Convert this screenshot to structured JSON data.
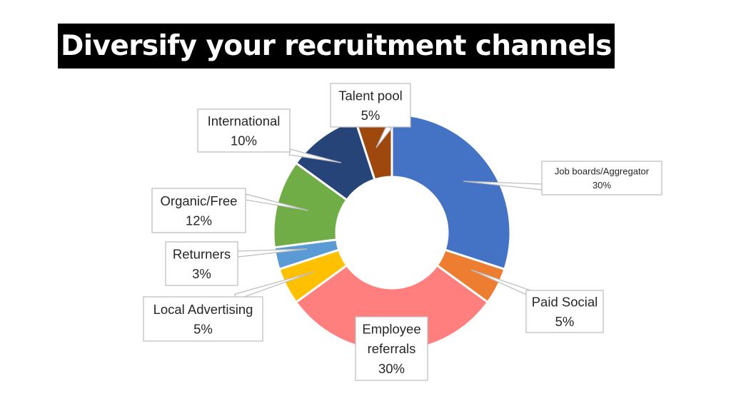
{
  "slide": {
    "title": "Diversify your recruitment channels"
  },
  "chart_data": {
    "type": "pie",
    "donut": true,
    "title": "",
    "slices": [
      {
        "label": "Job boards/Aggregator",
        "value": 30,
        "value_label": "30%",
        "color": "#4472C4"
      },
      {
        "label": "Paid Social",
        "value": 5,
        "value_label": "5%",
        "color": "#ED7D31"
      },
      {
        "label": "Employee referrals",
        "value": 30,
        "value_label": "30%",
        "color": "#FF7F7F"
      },
      {
        "label": "Local Advertising",
        "value": 5,
        "value_label": "5%",
        "color": "#FFC000"
      },
      {
        "label": "Returners",
        "value": 3,
        "value_label": "3%",
        "color": "#5B9BD5"
      },
      {
        "label": "Organic/Free",
        "value": 12,
        "value_label": "12%",
        "color": "#70AD47"
      },
      {
        "label": "International",
        "value": 10,
        "value_label": "10%",
        "color": "#264478"
      },
      {
        "label": "Talent pool",
        "value": 5,
        "value_label": "5%",
        "color": "#9E480E"
      }
    ]
  }
}
